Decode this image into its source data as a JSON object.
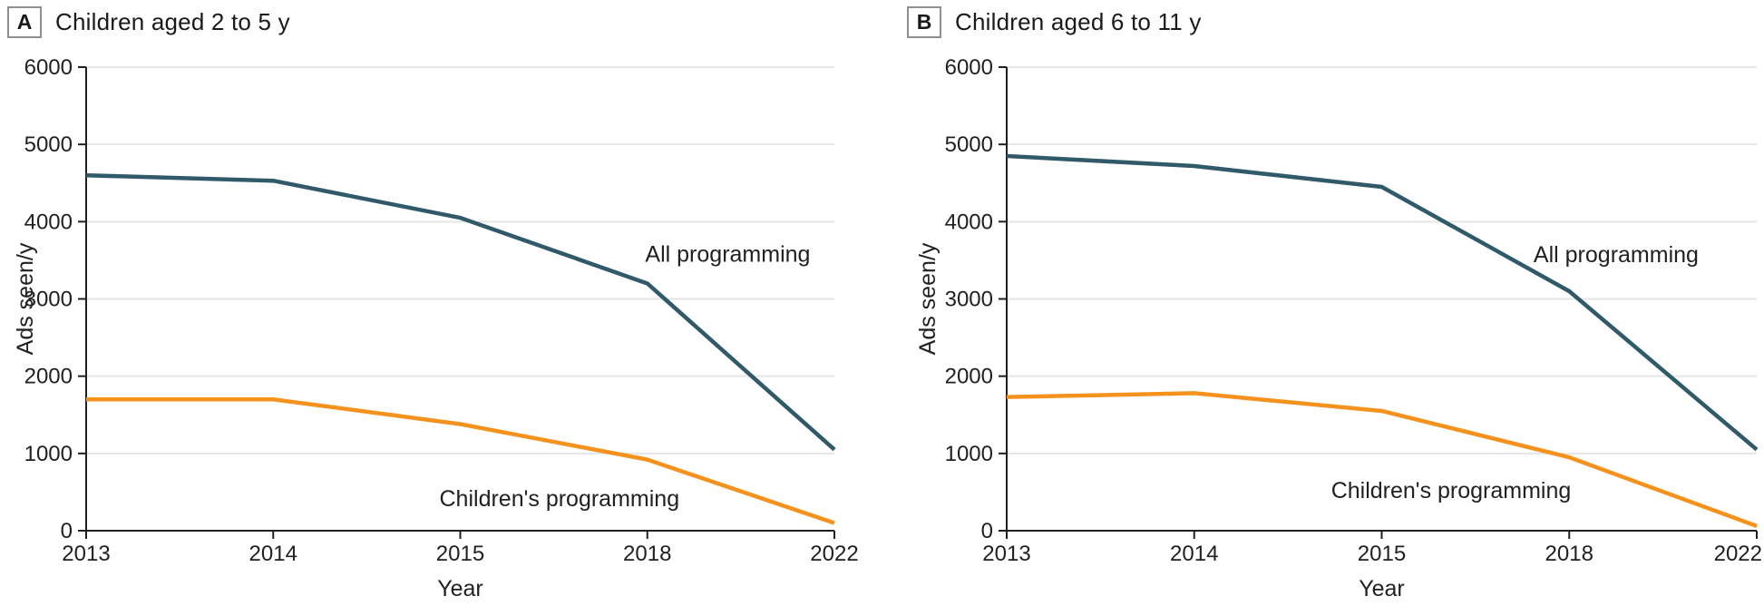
{
  "figure": {
    "panels": [
      {
        "panel_label": "A",
        "title": "Children aged 2 to 5 y"
      },
      {
        "panel_label": "B",
        "title": "Children aged 6 to 11 y"
      }
    ]
  },
  "chart_data": [
    {
      "type": "line",
      "panel": "A",
      "title": "Children aged 2 to 5 y",
      "categories": [
        "2013",
        "2014",
        "2015",
        "2018",
        "2022"
      ],
      "series": [
        {
          "name": "All programming",
          "values": [
            4600,
            4530,
            4050,
            3200,
            1050
          ],
          "color": "#305A6A"
        },
        {
          "name": "Children's programming",
          "values": [
            1700,
            1700,
            1380,
            920,
            100
          ],
          "color": "#F5921E"
        }
      ],
      "annotations": [
        {
          "text": "All programming",
          "x": 3.43,
          "y": 3590
        },
        {
          "text": "Children's programming",
          "x": 2.53,
          "y": 420
        }
      ],
      "xlabel": "Year",
      "ylabel": "Ads seen/y",
      "ylim": [
        0,
        6000
      ],
      "ytick_step": 1000,
      "grid": "horizontal",
      "legend": "inline-annotations"
    },
    {
      "type": "line",
      "panel": "B",
      "title": "Children aged 6 to 11 y",
      "categories": [
        "2013",
        "2014",
        "2015",
        "2018",
        "2022"
      ],
      "series": [
        {
          "name": "All programming",
          "values": [
            4850,
            4720,
            4450,
            3100,
            1050
          ],
          "color": "#305A6A"
        },
        {
          "name": "Children's programming",
          "values": [
            1730,
            1780,
            1550,
            950,
            60
          ],
          "color": "#F5921E"
        }
      ],
      "annotations": [
        {
          "text": "All programming",
          "x": 3.25,
          "y": 3580
        },
        {
          "text": "Children's programming",
          "x": 2.37,
          "y": 530
        }
      ],
      "xlabel": "Year",
      "ylabel": "Ads seen/y",
      "ylim": [
        0,
        6000
      ],
      "ytick_step": 1000,
      "grid": "horizontal",
      "legend": "inline-annotations"
    }
  ],
  "theme": {
    "axis_color": "#1f1f1f",
    "grid_color": "#e6e6e6",
    "text_color": "#212121",
    "background": "#ffffff"
  }
}
